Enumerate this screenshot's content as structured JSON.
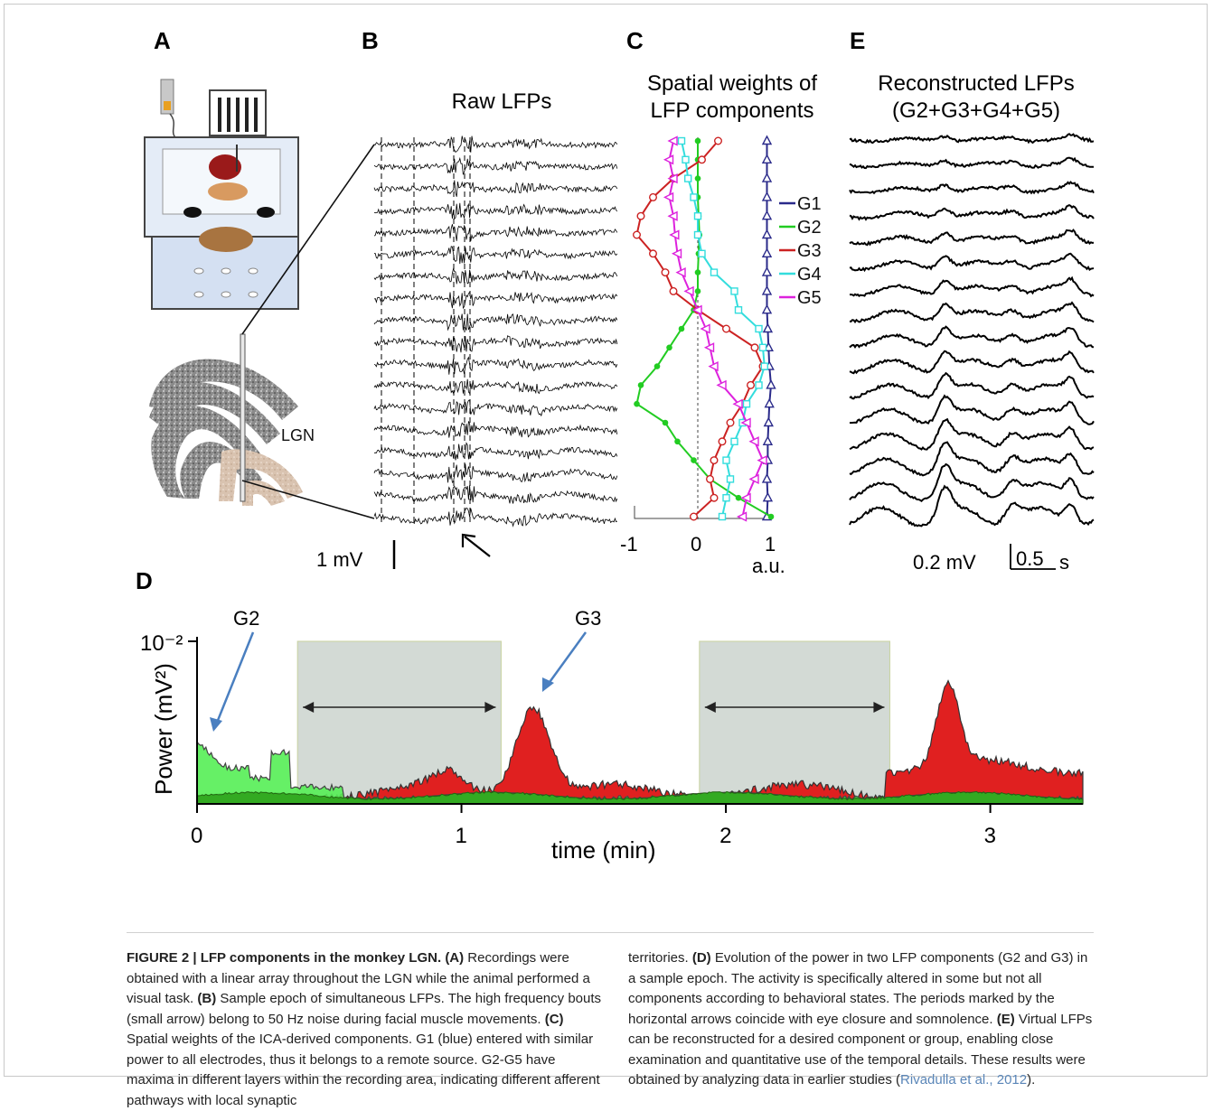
{
  "panels": {
    "A": "A",
    "B": "B",
    "C": "C",
    "D": "D",
    "E": "E"
  },
  "panelA": {
    "lgn_label": "LGN"
  },
  "panelB": {
    "title": "Raw LFPs",
    "scale_label": "1 mV"
  },
  "panelC": {
    "title_line1": "Spatial weights of",
    "title_line2": "LFP components",
    "tick_minus1": "-1",
    "tick_0": "0",
    "tick_1": "1",
    "unit": "a.u."
  },
  "panelE": {
    "title_line1": "Reconstructed LFPs",
    "title_line2": "(G2+G3+G4+G5)",
    "scale_v": "0.2 mV",
    "scale_t_value": "0.5",
    "scale_t_unit": "s"
  },
  "chart_data": [
    {
      "type": "line",
      "panel": "C",
      "title": "Spatial weights of LFP components",
      "xlabel": "a.u.",
      "xlim": [
        -1,
        1
      ],
      "xticks": [
        "-1",
        "0",
        "1"
      ],
      "legend_position": "right",
      "series": [
        {
          "name": "G1",
          "color": "#2a2a8a",
          "marker": "triangle",
          "values": [
            0.85,
            0.85,
            0.85,
            0.85,
            0.85,
            0.85,
            0.85,
            0.85,
            0.85,
            0.85,
            0.86,
            0.87,
            0.88,
            0.9,
            0.88,
            0.87,
            0.86,
            0.86,
            0.85,
            0.86,
            0.85
          ]
        },
        {
          "name": "G2",
          "color": "#22cc22",
          "marker": "dot",
          "values": [
            0.0,
            0.0,
            0.0,
            0.0,
            0.01,
            0.02,
            0.01,
            0.0,
            0.0,
            -0.05,
            -0.2,
            -0.35,
            -0.5,
            -0.7,
            -0.75,
            -0.4,
            -0.25,
            -0.05,
            0.15,
            0.5,
            0.9
          ]
        },
        {
          "name": "G3",
          "color": "#cc2222",
          "marker": "circle",
          "values": [
            0.25,
            0.05,
            -0.3,
            -0.55,
            -0.7,
            -0.75,
            -0.55,
            -0.4,
            -0.3,
            0.0,
            0.35,
            0.7,
            0.8,
            0.65,
            0.55,
            0.4,
            0.3,
            0.2,
            0.15,
            0.2,
            -0.05
          ]
        },
        {
          "name": "G4",
          "color": "#33dddd",
          "marker": "square",
          "values": [
            -0.2,
            -0.15,
            -0.12,
            -0.05,
            0.0,
            0.0,
            0.05,
            0.2,
            0.45,
            0.5,
            0.75,
            0.8,
            0.82,
            0.75,
            0.6,
            0.55,
            0.45,
            0.35,
            0.4,
            0.35,
            0.3
          ]
        },
        {
          "name": "G5",
          "color": "#dd22dd",
          "marker": "left-triangle",
          "values": [
            -0.3,
            -0.35,
            -0.3,
            -0.35,
            -0.3,
            -0.28,
            -0.25,
            -0.2,
            -0.1,
            0.0,
            0.1,
            0.15,
            0.2,
            0.3,
            0.5,
            0.6,
            0.7,
            0.8,
            0.7,
            0.6,
            0.55
          ]
        }
      ]
    },
    {
      "type": "area",
      "panel": "D",
      "xlabel": "time (min)",
      "ylabel": "Power (mV²)",
      "xlim": [
        0,
        3.35
      ],
      "xticks": [
        "0",
        "1",
        "2",
        "3"
      ],
      "ytick_label": "10⁻²",
      "shaded_periods": [
        [
          0.38,
          1.15
        ],
        [
          1.9,
          2.62
        ]
      ],
      "annotations": [
        "G2",
        "G3"
      ],
      "series": [
        {
          "name": "G2",
          "color": "#55ee55"
        },
        {
          "name": "G3",
          "color": "#e02020"
        }
      ]
    }
  ],
  "caption": {
    "fig_label": "FIGURE 2 | LFP components in the monkey LGN.",
    "col1": [
      {
        "b": "(A)",
        "t": " Recordings were obtained with a linear array throughout the LGN while the animal performed a visual task. "
      },
      {
        "b": "(B)",
        "t": " Sample epoch of simultaneous LFPs. The high frequency bouts (small arrow) belong to 50 Hz noise during facial muscle movements. "
      },
      {
        "b": "(C)",
        "t": " Spatial weights of the ICA-derived components. G1 (blue) entered with similar power to all electrodes, thus it belongs to a remote source. G2-G5 have maxima in different layers within the recording area, indicating different afferent pathways with local synaptic"
      }
    ],
    "col2_start": "territories. ",
    "col2": [
      {
        "b": "(D)",
        "t": " Evolution of the power in two LFP components (G2 and G3) in a sample epoch. The activity is specifically altered in some but not all components according to behavioral states. The periods marked by the horizontal arrows coincide with eye closure and somnolence. "
      },
      {
        "b": "(E)",
        "t": " Virtual LFPs can be reconstructed for a desired component or group, enabling close examination and quantitative use of the temporal details. These results were obtained by analyzing data in earlier studies ("
      }
    ],
    "cite": "Rivadulla et al., 2012",
    "cite_end": ")."
  }
}
